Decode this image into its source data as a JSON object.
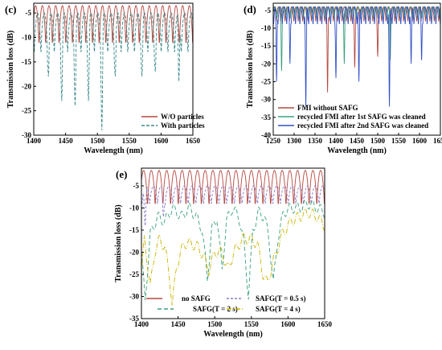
{
  "colors": {
    "red": "#b5483f",
    "gray": "#8c8c8c",
    "teal": "#3c8a8a",
    "blue": "#3250c8",
    "purple": "#8a78c8",
    "green": "#3aa07a",
    "olive": "#c8b400",
    "axis": "#000000"
  },
  "chart_data": [
    {
      "panel": "(c)",
      "type": "line",
      "xlabel": "Wavelength (nm)",
      "ylabel": "Transmission loss (dB)",
      "xlim": [
        1400,
        1650
      ],
      "ylim": [
        -30,
        -3
      ],
      "xticks": [
        1400,
        1450,
        1500,
        1550,
        1600,
        1650
      ],
      "yticks": [
        -5,
        -10,
        -15,
        -20,
        -25,
        -30
      ],
      "legend_position": "bottom-right",
      "series": [
        {
          "name": "W/O particles",
          "color": "red",
          "dash": "",
          "period_nm": 10.5,
          "phase_nm": 1403,
          "max_db": -3.5,
          "min_db": -13,
          "dips": []
        },
        {
          "name": "With particles",
          "color": "teal",
          "dash": "4,2",
          "period_nm": 10.5,
          "phase_nm": 1406,
          "max_db": -5,
          "min_db": -15,
          "dips": [
            [
              1423,
              -18
            ],
            [
              1444,
              -23
            ],
            [
              1465,
              -24
            ],
            [
              1486,
              -23
            ],
            [
              1507,
              -29
            ],
            [
              1528,
              -18
            ],
            [
              1570,
              -18
            ],
            [
              1591,
              -17
            ],
            [
              1628,
              -19
            ]
          ]
        }
      ]
    },
    {
      "panel": "(d)",
      "type": "line",
      "xlabel": "Wavelength (nm)",
      "ylabel": "Transmission loss (dB)",
      "xlim": [
        1250,
        1650
      ],
      "ylim": [
        -40,
        -3
      ],
      "xticks": [
        1250,
        1300,
        1350,
        1400,
        1450,
        1500,
        1550,
        1600,
        1650
      ],
      "yticks": [
        -5,
        -10,
        -15,
        -20,
        -25,
        -30,
        -35,
        -40
      ],
      "legend_position": "bottom-left",
      "series": [
        {
          "name": "FMI without SAFG",
          "color": "red",
          "dash": "",
          "period_nm": 10.5,
          "phase_nm": 1252,
          "max_db": -4,
          "min_db": -9,
          "dips": [
            [
              1380,
              -28
            ],
            [
              1445,
              -21
            ],
            [
              1500,
              -18
            ]
          ]
        },
        {
          "name": "recycled FMI after 1st SAFG was cleaned",
          "color": "green",
          "dash": "",
          "period_nm": 10.5,
          "phase_nm": 1254,
          "max_db": -4,
          "min_db": -8,
          "dips": [
            [
              1270,
              -22
            ],
            [
              1420,
              -20
            ],
            [
              1530,
              -19
            ]
          ]
        },
        {
          "name": "recycled FMI after 2nd SAFG was cleaned",
          "color": "blue",
          "dash": "",
          "period_nm": 10.5,
          "phase_nm": 1256,
          "max_db": -4,
          "min_db": -10,
          "dips": [
            [
              1258,
              -25
            ],
            [
              1290,
              -20
            ],
            [
              1328,
              -32
            ],
            [
              1400,
              -24
            ],
            [
              1455,
              -25
            ],
            [
              1528,
              -32
            ],
            [
              1580,
              -20
            ],
            [
              1605,
              -19
            ]
          ]
        }
      ]
    },
    {
      "panel": "(e)",
      "type": "line",
      "xlabel": "Wavelength (nm)",
      "ylabel": "Transmission loss (dB)",
      "xlim": [
        1400,
        1650
      ],
      "ylim": [
        -35,
        -1
      ],
      "xticks": [
        1400,
        1450,
        1500,
        1550,
        1600,
        1650
      ],
      "yticks": [
        -5,
        -10,
        -15,
        -20,
        -25,
        -30,
        -35
      ],
      "legend_position": "bottom-left",
      "series": [
        {
          "name": "no SAFG",
          "color": "red",
          "dash": "",
          "period_nm": 10.5,
          "phase_nm": 1403,
          "max_db": -1.5,
          "min_db": -11,
          "dips": []
        },
        {
          "name": "SAFG(T = 0.5 s)",
          "color": "purple",
          "dash": "3,2",
          "period_nm": 10.5,
          "phase_nm": 1406,
          "max_db": -5,
          "min_db": -10,
          "dips": [
            [
              1405,
              -14
            ],
            [
              1430,
              -12
            ]
          ]
        },
        {
          "name": "SAFG(T = 2 s)",
          "color": "green",
          "dash": "5,3",
          "period_nm": 0,
          "phase_nm": 0,
          "max_db": 0,
          "min_db": 0,
          "points": [
            [
              1400,
              -20
            ],
            [
              1405,
              -31
            ],
            [
              1412,
              -16
            ],
            [
              1422,
              -12
            ],
            [
              1432,
              -13
            ],
            [
              1442,
              -10
            ],
            [
              1455,
              -12
            ],
            [
              1465,
              -10
            ],
            [
              1475,
              -12
            ],
            [
              1483,
              -15
            ],
            [
              1490,
              -26
            ],
            [
              1496,
              -15
            ],
            [
              1503,
              -12
            ],
            [
              1510,
              -24
            ],
            [
              1516,
              -13
            ],
            [
              1524,
              -10
            ],
            [
              1533,
              -12
            ],
            [
              1540,
              -18
            ],
            [
              1546,
              -30
            ],
            [
              1552,
              -15
            ],
            [
              1560,
              -11
            ],
            [
              1568,
              -12
            ],
            [
              1574,
              -17
            ],
            [
              1580,
              -27
            ],
            [
              1586,
              -17
            ],
            [
              1594,
              -11
            ],
            [
              1604,
              -10
            ],
            [
              1615,
              -10
            ],
            [
              1628,
              -9
            ],
            [
              1640,
              -10
            ],
            [
              1650,
              -11
            ]
          ]
        },
        {
          "name": "SAFG(T = 4 s)",
          "color": "olive",
          "dash": "6,2,1,2",
          "period_nm": 0,
          "phase_nm": 0,
          "max_db": 0,
          "min_db": 0,
          "points": [
            [
              1400,
              -25
            ],
            [
              1404,
              -17
            ],
            [
              1408,
              -22
            ],
            [
              1412,
              -28
            ],
            [
              1418,
              -20
            ],
            [
              1425,
              -17
            ],
            [
              1432,
              -19
            ],
            [
              1438,
              -25
            ],
            [
              1442,
              -32
            ],
            [
              1448,
              -23
            ],
            [
              1458,
              -18
            ],
            [
              1468,
              -18
            ],
            [
              1478,
              -19
            ],
            [
              1485,
              -21
            ],
            [
              1492,
              -24
            ],
            [
              1500,
              -20
            ],
            [
              1510,
              -20
            ],
            [
              1518,
              -24
            ],
            [
              1526,
              -20
            ],
            [
              1538,
              -17
            ],
            [
              1548,
              -17
            ],
            [
              1558,
              -18
            ],
            [
              1566,
              -25
            ],
            [
              1572,
              -27
            ],
            [
              1580,
              -22
            ],
            [
              1592,
              -16
            ],
            [
              1604,
              -13
            ],
            [
              1615,
              -12
            ],
            [
              1628,
              -11
            ],
            [
              1640,
              -12
            ],
            [
              1650,
              -14
            ]
          ]
        }
      ]
    }
  ],
  "labels": {
    "c": "(c)",
    "d": "(d)",
    "e": "(e)",
    "c_legend": [
      "W/O particles",
      "With particles"
    ],
    "d_legend": [
      "FMI without SAFG",
      "recycled FMI after 1st SAFG was cleaned",
      "recycled FMI after 2nd SAFG was cleaned"
    ],
    "e_legend": [
      "no SAFG",
      "SAFG(T = 0.5 s)",
      "SAFG(T = 2 s)",
      "SAFG(T = 4 s)"
    ]
  }
}
